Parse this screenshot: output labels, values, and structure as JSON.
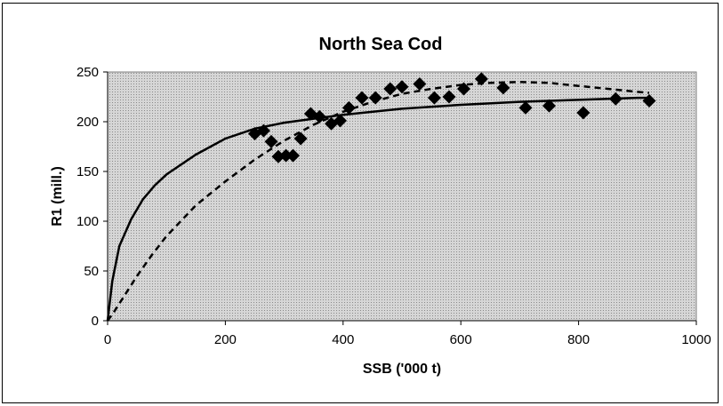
{
  "chart_data": {
    "type": "scatter",
    "title": "North Sea Cod",
    "xlabel": "SSB ('000 t)",
    "ylabel": "R1 (mill.)",
    "xlim": [
      0,
      1000
    ],
    "ylim": [
      0,
      250
    ],
    "x_ticks": [
      0,
      200,
      400,
      600,
      800,
      1000
    ],
    "y_ticks": [
      0,
      50,
      100,
      150,
      200,
      250
    ],
    "grid": false,
    "plot_background": "#c8c8c8",
    "points": [
      {
        "x": 250,
        "y": 188
      },
      {
        "x": 265,
        "y": 191
      },
      {
        "x": 278,
        "y": 180
      },
      {
        "x": 290,
        "y": 165
      },
      {
        "x": 303,
        "y": 166
      },
      {
        "x": 315,
        "y": 166
      },
      {
        "x": 328,
        "y": 183
      },
      {
        "x": 345,
        "y": 208
      },
      {
        "x": 360,
        "y": 205
      },
      {
        "x": 380,
        "y": 198
      },
      {
        "x": 395,
        "y": 201
      },
      {
        "x": 410,
        "y": 214
      },
      {
        "x": 432,
        "y": 224
      },
      {
        "x": 455,
        "y": 224
      },
      {
        "x": 480,
        "y": 233
      },
      {
        "x": 500,
        "y": 235
      },
      {
        "x": 530,
        "y": 238
      },
      {
        "x": 555,
        "y": 224
      },
      {
        "x": 580,
        "y": 225
      },
      {
        "x": 605,
        "y": 233
      },
      {
        "x": 635,
        "y": 243
      },
      {
        "x": 672,
        "y": 234
      },
      {
        "x": 710,
        "y": 214
      },
      {
        "x": 750,
        "y": 216
      },
      {
        "x": 808,
        "y": 209
      },
      {
        "x": 863,
        "y": 223
      },
      {
        "x": 920,
        "y": 221
      }
    ],
    "series": [
      {
        "style": "solid",
        "x": [
          0,
          8,
          20,
          40,
          60,
          80,
          100,
          150,
          200,
          250,
          300,
          350,
          400,
          500,
          600,
          700,
          800,
          900,
          920
        ],
        "y": [
          0,
          40,
          75,
          102,
          122,
          136,
          147,
          167,
          183,
          193,
          199,
          203,
          207,
          213,
          217,
          220,
          222,
          224,
          224
        ]
      },
      {
        "style": "dashed",
        "x": [
          0,
          10,
          25,
          50,
          75,
          100,
          150,
          200,
          250,
          300,
          350,
          400,
          450,
          500,
          550,
          600,
          650,
          700,
          750,
          800,
          850,
          900,
          920
        ],
        "y": [
          0,
          8,
          22,
          45,
          66,
          85,
          116,
          140,
          162,
          181,
          197,
          210,
          220,
          228,
          233,
          237,
          239,
          240,
          239,
          236,
          233,
          230,
          229
        ]
      }
    ]
  }
}
